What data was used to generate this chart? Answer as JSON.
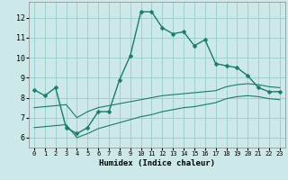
{
  "xlabel": "Humidex (Indice chaleur)",
  "bg_color": "#cce8e8",
  "grid_color": "#99cccc",
  "line_color": "#1a7a6e",
  "x_ticks": [
    0,
    1,
    2,
    3,
    4,
    5,
    6,
    7,
    8,
    9,
    10,
    11,
    12,
    13,
    14,
    15,
    16,
    17,
    18,
    19,
    20,
    21,
    22,
    23
  ],
  "y_ticks": [
    6,
    7,
    8,
    9,
    10,
    11,
    12
  ],
  "xlim": [
    -0.5,
    23.5
  ],
  "ylim": [
    5.5,
    12.8
  ],
  "line1_x": [
    0,
    1,
    2,
    3,
    4,
    5,
    6,
    7,
    8,
    9,
    10,
    11,
    12,
    13,
    14,
    15,
    16,
    17,
    18,
    19,
    20,
    21,
    22,
    23
  ],
  "line1_y": [
    8.4,
    8.1,
    8.5,
    6.5,
    6.2,
    6.5,
    7.3,
    7.3,
    8.9,
    10.1,
    12.3,
    12.3,
    11.5,
    11.2,
    11.3,
    10.6,
    10.9,
    9.7,
    9.6,
    9.5,
    9.1,
    8.5,
    8.3,
    8.3
  ],
  "line2_x": [
    0,
    1,
    2,
    3,
    4,
    5,
    6,
    7,
    8,
    9,
    10,
    11,
    12,
    13,
    14,
    15,
    16,
    17,
    18,
    19,
    20,
    21,
    22,
    23
  ],
  "line2_y": [
    7.5,
    7.55,
    7.6,
    7.65,
    7.0,
    7.3,
    7.5,
    7.6,
    7.7,
    7.8,
    7.9,
    8.0,
    8.1,
    8.15,
    8.2,
    8.25,
    8.3,
    8.35,
    8.55,
    8.65,
    8.7,
    8.65,
    8.55,
    8.5
  ],
  "line3_x": [
    0,
    1,
    2,
    3,
    4,
    5,
    6,
    7,
    8,
    9,
    10,
    11,
    12,
    13,
    14,
    15,
    16,
    17,
    18,
    19,
    20,
    21,
    22,
    23
  ],
  "line3_y": [
    6.5,
    6.55,
    6.6,
    6.65,
    6.0,
    6.2,
    6.45,
    6.6,
    6.75,
    6.9,
    7.05,
    7.15,
    7.3,
    7.4,
    7.5,
    7.55,
    7.65,
    7.75,
    7.95,
    8.05,
    8.1,
    8.05,
    7.95,
    7.9
  ],
  "xlabel_fontsize": 6.5,
  "tick_fontsize_x": 5.0,
  "tick_fontsize_y": 6.0,
  "linewidth_main": 1.0,
  "linewidth_band": 0.8,
  "marker_size": 2.5
}
